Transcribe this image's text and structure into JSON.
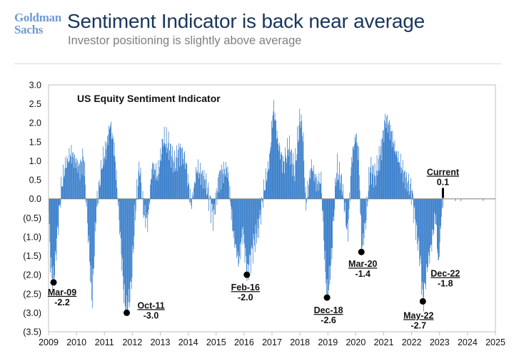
{
  "header": {
    "logo_line1": "Goldman",
    "logo_line2": "Sachs",
    "title": "Sentiment Indicator is back near average",
    "subtitle": "Investor positioning is slightly above average"
  },
  "colors": {
    "bar": "#2f78c9",
    "title": "#17365d",
    "logo": "#6f9bd1",
    "marker": "#000000",
    "text": "#111111"
  },
  "chart_data": {
    "type": "bar",
    "title": "US Equity Sentiment Indicator",
    "xlabel": "",
    "ylabel": "",
    "xlim": [
      2009,
      2025
    ],
    "ylim": [
      -3.5,
      3.0
    ],
    "x_ticks": [
      2009,
      2010,
      2011,
      2012,
      2013,
      2014,
      2015,
      2016,
      2017,
      2018,
      2019,
      2020,
      2021,
      2022,
      2023,
      2024,
      2025
    ],
    "x_tick_labels": [
      "2009",
      "2010",
      "2011",
      "2012",
      "2013",
      "2014",
      "2015",
      "2016",
      "2017",
      "2018",
      "2019",
      "2020",
      "2021",
      "2022",
      "2023",
      "2024",
      "2025"
    ],
    "y_ticks": [
      3.0,
      2.5,
      2.0,
      1.5,
      1.0,
      0.5,
      0.0,
      -0.5,
      -1.0,
      -1.5,
      -2.0,
      -2.5,
      -3.0,
      -3.5
    ],
    "y_tick_labels": [
      "3.0",
      "2.5",
      "2.0",
      "1.5",
      "1.0",
      "0.5",
      "0.0",
      "(0.5)",
      "(1.0)",
      "(1.5)",
      "(2.0)",
      "(2.5)",
      "(3.0)",
      "(3.5)"
    ],
    "series_name": "US Equity Sentiment Indicator",
    "series_knots": [
      [
        2009.0,
        -0.5
      ],
      [
        2009.08,
        -1.9
      ],
      [
        2009.18,
        -2.2
      ],
      [
        2009.3,
        -1.0
      ],
      [
        2009.45,
        0.3
      ],
      [
        2009.6,
        0.9
      ],
      [
        2009.8,
        1.2
      ],
      [
        2010.1,
        0.8
      ],
      [
        2010.25,
        1.1
      ],
      [
        2010.4,
        -0.8
      ],
      [
        2010.55,
        -2.7
      ],
      [
        2010.7,
        -0.3
      ],
      [
        2010.9,
        0.9
      ],
      [
        2011.05,
        1.3
      ],
      [
        2011.2,
        2.0
      ],
      [
        2011.35,
        1.3
      ],
      [
        2011.5,
        -0.3
      ],
      [
        2011.7,
        -2.6
      ],
      [
        2011.8,
        -3.0
      ],
      [
        2011.95,
        -2.3
      ],
      [
        2012.1,
        -0.3
      ],
      [
        2012.25,
        0.9
      ],
      [
        2012.4,
        -0.4
      ],
      [
        2012.55,
        -0.6
      ],
      [
        2012.7,
        0.9
      ],
      [
        2012.9,
        0.6
      ],
      [
        2013.1,
        1.6
      ],
      [
        2013.3,
        1.4
      ],
      [
        2013.5,
        0.9
      ],
      [
        2013.7,
        1.3
      ],
      [
        2013.9,
        1.0
      ],
      [
        2014.1,
        -0.2
      ],
      [
        2014.3,
        0.8
      ],
      [
        2014.6,
        0.5
      ],
      [
        2014.9,
        -0.5
      ],
      [
        2015.1,
        0.6
      ],
      [
        2015.4,
        0.8
      ],
      [
        2015.6,
        -0.9
      ],
      [
        2015.8,
        -1.7
      ],
      [
        2015.95,
        -0.8
      ],
      [
        2016.1,
        -2.0
      ],
      [
        2016.3,
        -1.3
      ],
      [
        2016.5,
        -0.8
      ],
      [
        2016.7,
        0.2
      ],
      [
        2016.9,
        1.0
      ],
      [
        2017.05,
        2.5
      ],
      [
        2017.2,
        1.5
      ],
      [
        2017.4,
        0.9
      ],
      [
        2017.6,
        1.4
      ],
      [
        2017.8,
        0.7
      ],
      [
        2018.0,
        2.2
      ],
      [
        2018.1,
        1.7
      ],
      [
        2018.2,
        -0.2
      ],
      [
        2018.4,
        0.9
      ],
      [
        2018.6,
        0.4
      ],
      [
        2018.75,
        0.5
      ],
      [
        2018.9,
        -1.9
      ],
      [
        2018.97,
        -2.6
      ],
      [
        2019.1,
        -1.8
      ],
      [
        2019.3,
        0.8
      ],
      [
        2019.5,
        0.4
      ],
      [
        2019.7,
        -1.0
      ],
      [
        2019.85,
        1.1
      ],
      [
        2020.0,
        1.7
      ],
      [
        2020.1,
        1.1
      ],
      [
        2020.2,
        -1.4
      ],
      [
        2020.35,
        -0.6
      ],
      [
        2020.5,
        0.8
      ],
      [
        2020.7,
        0.6
      ],
      [
        2020.9,
        1.3
      ],
      [
        2021.05,
        2.1
      ],
      [
        2021.2,
        1.9
      ],
      [
        2021.4,
        1.3
      ],
      [
        2021.6,
        0.9
      ],
      [
        2021.8,
        0.5
      ],
      [
        2022.0,
        0.2
      ],
      [
        2022.15,
        -0.8
      ],
      [
        2022.3,
        -1.6
      ],
      [
        2022.4,
        -2.7
      ],
      [
        2022.55,
        -1.8
      ],
      [
        2022.7,
        -1.2
      ],
      [
        2022.85,
        -0.4
      ],
      [
        2022.95,
        -1.8
      ],
      [
        2023.05,
        -0.5
      ],
      [
        2023.12,
        0.1
      ]
    ],
    "annotations": [
      {
        "date": "Mar-09",
        "x": 2009.18,
        "value": -2.2,
        "label": "-2.2"
      },
      {
        "date": "Oct-11",
        "x": 2011.8,
        "value": -3.0,
        "label": "-3.0"
      },
      {
        "date": "Feb-16",
        "x": 2016.1,
        "value": -2.0,
        "label": "-2.0"
      },
      {
        "date": "Dec-18",
        "x": 2018.97,
        "value": -2.6,
        "label": "-2.6"
      },
      {
        "date": "Mar-20",
        "x": 2020.2,
        "value": -1.4,
        "label": "-1.4"
      },
      {
        "date": "May-22",
        "x": 2022.4,
        "value": -2.7,
        "label": "-2.7"
      },
      {
        "date": "Dec-22",
        "x": 2022.95,
        "value": -1.8,
        "label": "-1.8"
      },
      {
        "date": "Current",
        "x": 2023.12,
        "value": 0.1,
        "label": "0.1"
      }
    ]
  }
}
